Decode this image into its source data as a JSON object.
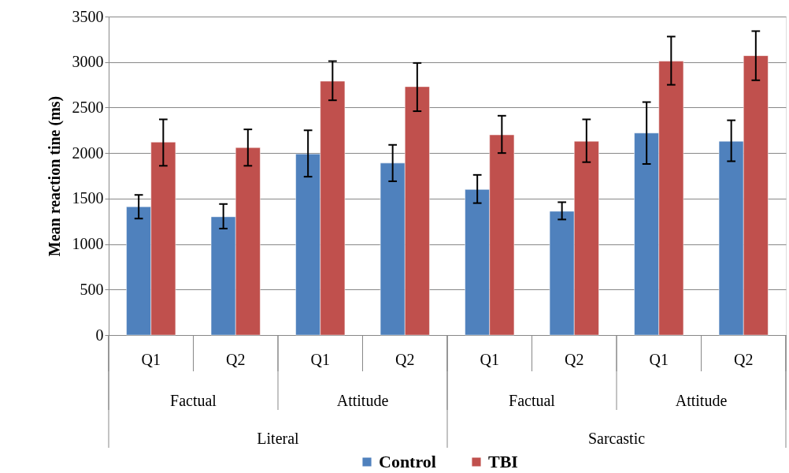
{
  "chart_data": {
    "type": "bar",
    "ylabel": "Mean reaction tine (ms)",
    "categories": [
      "Q1",
      "Q2",
      "Q1",
      "Q2",
      "Q1",
      "Q2",
      "Q1",
      "Q2"
    ],
    "series": [
      {
        "name": "Control",
        "color": "#4f81bd",
        "values": [
          1410,
          1300,
          1990,
          1890,
          1600,
          1360,
          2220,
          2130
        ],
        "errors": [
          [
            1280,
            1540
          ],
          [
            1170,
            1440
          ],
          [
            1740,
            2250
          ],
          [
            1690,
            2090
          ],
          [
            1450,
            1760
          ],
          [
            1270,
            1460
          ],
          [
            1880,
            2560
          ],
          [
            1910,
            2360
          ]
        ]
      },
      {
        "name": "TBI",
        "color": "#c0504d",
        "values": [
          2120,
          2060,
          2790,
          2730,
          2200,
          2130,
          3010,
          3070
        ],
        "errors": [
          [
            1860,
            2370
          ],
          [
            1860,
            2260
          ],
          [
            2580,
            3010
          ],
          [
            2460,
            2990
          ],
          [
            2000,
            2410
          ],
          [
            1900,
            2370
          ],
          [
            2750,
            3280
          ],
          [
            2800,
            3340
          ]
        ]
      }
    ],
    "annotations": [
      "Factual",
      "Attitude",
      "Factual",
      "Attitude",
      "Literal",
      "Sarcastic"
    ],
    "ylim": [
      0,
      3500
    ],
    "yticks": [
      0,
      500,
      1000,
      1500,
      2000,
      2500,
      3000,
      3500
    ],
    "grid": "y",
    "legend": "bottom"
  }
}
